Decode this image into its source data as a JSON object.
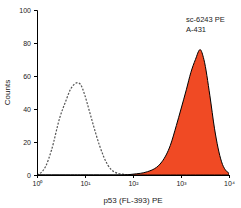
{
  "chart_data": {
    "type": "line",
    "log": "x",
    "x_label": "p53 (FL-393) PE",
    "y_label": "Counts",
    "annotations": [
      "sc-6243 PE",
      "A-431"
    ],
    "x": [
      1,
      1.5,
      2,
      3,
      4,
      5,
      6,
      7,
      8,
      10,
      12,
      15,
      20,
      30,
      40,
      60,
      100,
      200,
      400,
      600,
      800,
      1000,
      1300,
      1600,
      2000,
      2500,
      3000,
      4000,
      5000,
      7000,
      10000
    ],
    "series": [
      {
        "color": "#555555",
        "line_style": "dashed",
        "values": [
          0,
          5,
          15,
          35,
          45,
          52,
          55,
          56,
          55,
          48,
          40,
          30,
          18,
          6,
          2,
          0.5,
          0,
          0,
          0,
          0,
          0,
          0,
          0,
          0,
          0,
          0,
          0,
          0,
          0,
          0,
          0
        ]
      },
      {
        "color": "#f04a24",
        "type": "area",
        "values": [
          0,
          0,
          0,
          0,
          0,
          0,
          0,
          0,
          0,
          0,
          0,
          0,
          0,
          0,
          0,
          0,
          0.5,
          2,
          8,
          18,
          30,
          40,
          52,
          62,
          70,
          76,
          70,
          48,
          28,
          8,
          1
        ]
      }
    ],
    "xlim": [
      1,
      10000
    ],
    "xticks": [
      {
        "value": 1,
        "label": "10⁰"
      },
      {
        "value": 10,
        "label": "10¹"
      },
      {
        "value": 100,
        "label": "10²"
      },
      {
        "value": 1000,
        "label": "10³"
      },
      {
        "value": 10000,
        "label": "10⁴"
      }
    ],
    "ylim": [
      0,
      100
    ],
    "yticks": [
      0,
      20,
      40,
      60,
      80,
      100
    ]
  }
}
